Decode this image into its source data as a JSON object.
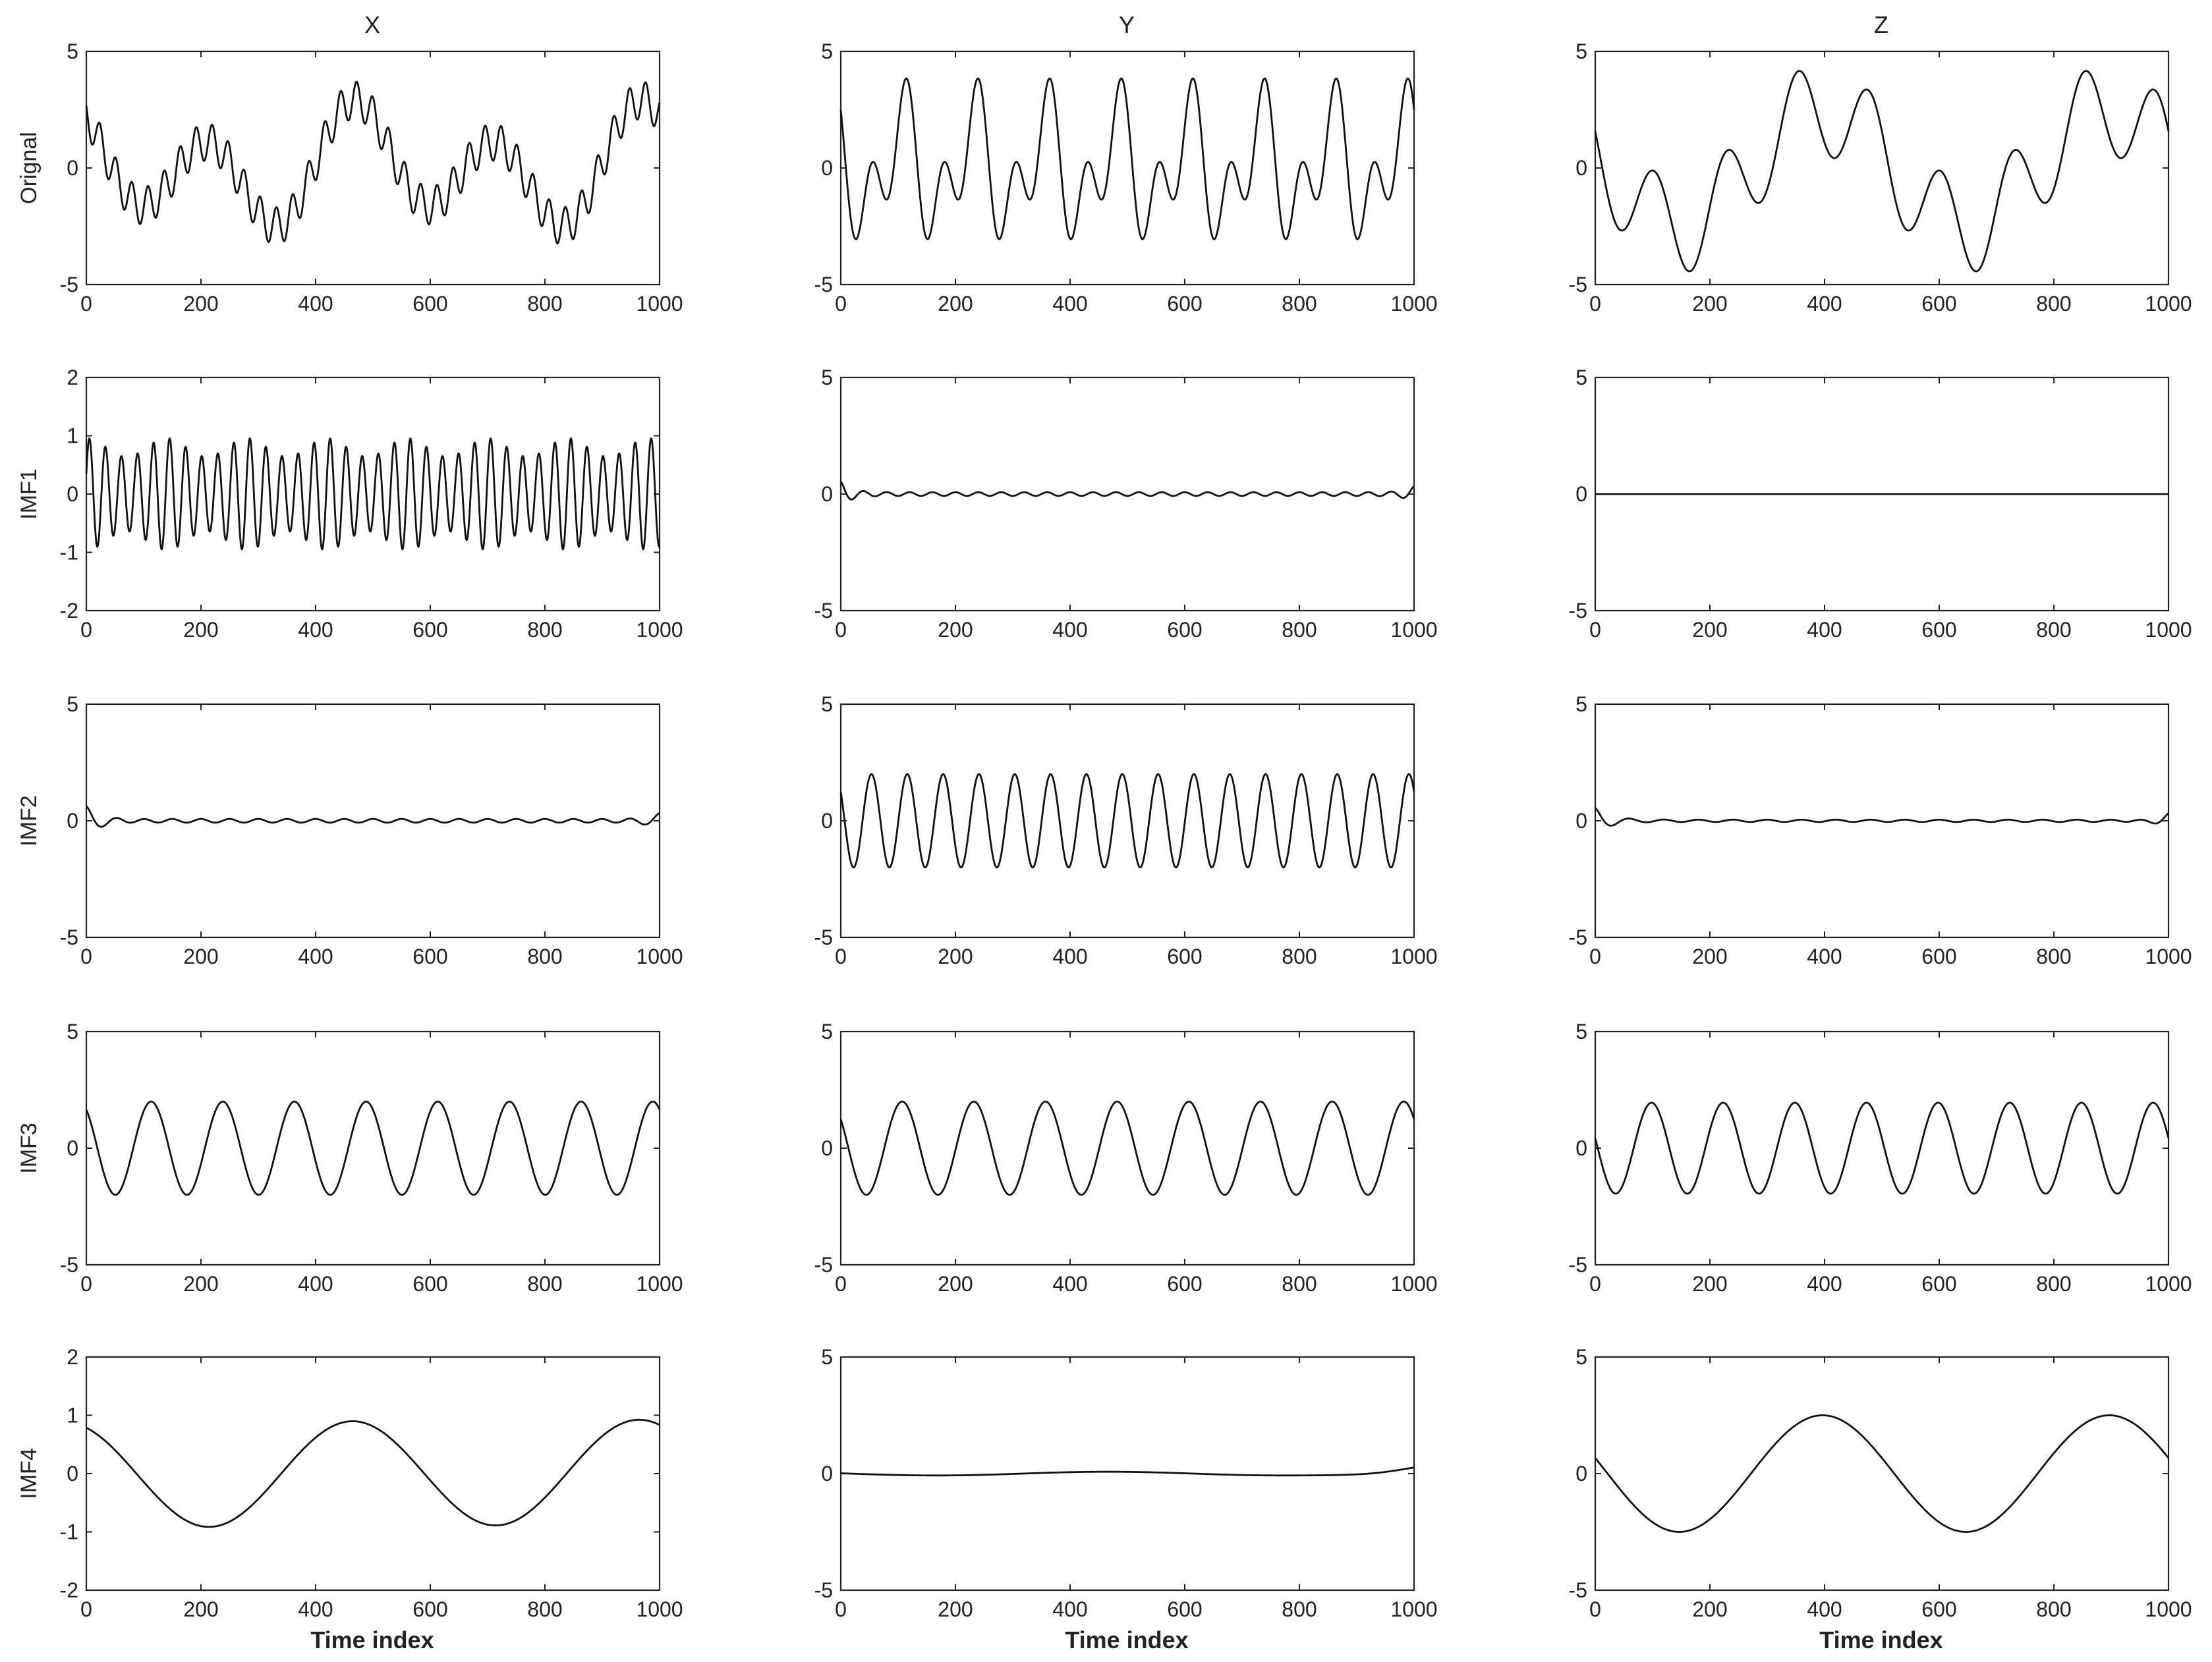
{
  "column_titles": [
    "X",
    "Y",
    "Z"
  ],
  "row_labels": [
    "Orignal",
    "IMF1",
    "IMF2",
    "IMF3",
    "IMF4"
  ],
  "xlabel": "Time index",
  "chart_data": [
    {
      "type": "line",
      "row": 0,
      "col": 0,
      "ylabel": "Orignal",
      "column_title": "X",
      "xlim": [
        0,
        1000
      ],
      "ylim": [
        -5,
        5
      ],
      "xticks": [
        "0",
        "200",
        "400",
        "600",
        "800",
        "1000"
      ],
      "yticks": [
        "-5",
        "0",
        "5"
      ],
      "series": [
        {
          "components": [
            {
              "amp": 2.0,
              "period": 250,
              "phase": 0.9
            },
            {
              "amp": 0.8,
              "period": 28,
              "phase": 1.0
            },
            {
              "amp": 1.0,
              "period": 500,
              "phase": 0.0
            }
          ]
        }
      ]
    },
    {
      "type": "line",
      "row": 0,
      "col": 1,
      "ylabel": "",
      "column_title": "Y",
      "xlim": [
        0,
        1000
      ],
      "ylim": [
        -5,
        5
      ],
      "xticks": [
        "0",
        "200",
        "400",
        "600",
        "800",
        "1000"
      ],
      "yticks": [
        "-5",
        "0",
        "5"
      ],
      "series": [
        {
          "components": [
            {
              "amp": 2.0,
              "period": 125,
              "phase": 0.9
            },
            {
              "amp": 2.0,
              "period": 62.5,
              "phase": 0.9
            }
          ]
        }
      ]
    },
    {
      "type": "line",
      "row": 0,
      "col": 2,
      "ylabel": "",
      "column_title": "Z",
      "xlim": [
        0,
        1000
      ],
      "ylim": [
        -5,
        5
      ],
      "xticks": [
        "0",
        "200",
        "400",
        "600",
        "800",
        "1000"
      ],
      "yticks": [
        "-5",
        "0",
        "5"
      ],
      "series": [
        {
          "components": [
            {
              "amp": 2.0,
              "period": 125,
              "phase": 1.1
            },
            {
              "amp": 2.5,
              "period": 500,
              "phase": 1.3
            }
          ]
        }
      ]
    },
    {
      "type": "line",
      "row": 1,
      "col": 0,
      "ylabel": "IMF1",
      "column_title": "X",
      "xlim": [
        0,
        1000
      ],
      "ylim": [
        -2,
        2
      ],
      "xticks": [
        "0",
        "200",
        "400",
        "600",
        "800",
        "1000"
      ],
      "yticks": [
        "-2",
        "-1",
        "0",
        "1",
        "2"
      ],
      "series": [
        {
          "components": [
            {
              "amp": 0.8,
              "period": 28,
              "phase": -1.2
            }
          ],
          "modulation": {
            "depth": 0.2,
            "period": 140
          }
        }
      ]
    },
    {
      "type": "line",
      "row": 1,
      "col": 1,
      "ylabel": "",
      "column_title": "Y",
      "xlim": [
        0,
        1000
      ],
      "ylim": [
        -5,
        5
      ],
      "xticks": [
        "0",
        "200",
        "400",
        "600",
        "800",
        "1000"
      ],
      "yticks": [
        "-5",
        "0",
        "5"
      ],
      "series": [
        {
          "components": [
            {
              "amp": 0.08,
              "period": 40,
              "phase": 0.0
            }
          ],
          "edge_wiggle": {
            "start_amp": 0.45,
            "end_amp": 0.25,
            "period": 40,
            "decay": 18
          }
        }
      ]
    },
    {
      "type": "line",
      "row": 1,
      "col": 2,
      "ylabel": "",
      "column_title": "Z",
      "xlim": [
        0,
        1000
      ],
      "ylim": [
        -5,
        5
      ],
      "xticks": [
        "0",
        "200",
        "400",
        "600",
        "800",
        "1000"
      ],
      "yticks": [
        "-5",
        "0",
        "5"
      ],
      "series": [
        {
          "components": [
            {
              "amp": 0.0,
              "period": 100,
              "phase": 0.0
            }
          ]
        }
      ]
    },
    {
      "type": "line",
      "row": 2,
      "col": 0,
      "ylabel": "IMF2",
      "column_title": "X",
      "xlim": [
        0,
        1000
      ],
      "ylim": [
        -5,
        5
      ],
      "xticks": [
        "0",
        "200",
        "400",
        "600",
        "800",
        "1000"
      ],
      "yticks": [
        "-5",
        "0",
        "5"
      ],
      "series": [
        {
          "components": [
            {
              "amp": 0.08,
              "period": 50,
              "phase": 0.0
            }
          ],
          "edge_wiggle": {
            "start_amp": 0.55,
            "end_amp": 0.25,
            "period": 60,
            "decay": 25
          }
        }
      ]
    },
    {
      "type": "line",
      "row": 2,
      "col": 1,
      "ylabel": "",
      "column_title": "Y",
      "xlim": [
        0,
        1000
      ],
      "ylim": [
        -5,
        5
      ],
      "xticks": [
        "0",
        "200",
        "400",
        "600",
        "800",
        "1000"
      ],
      "yticks": [
        "-5",
        "0",
        "5"
      ],
      "series": [
        {
          "components": [
            {
              "amp": 2.0,
              "period": 62.5,
              "phase": 0.9
            }
          ]
        }
      ]
    },
    {
      "type": "line",
      "row": 2,
      "col": 2,
      "ylabel": "",
      "column_title": "Z",
      "xlim": [
        0,
        1000
      ],
      "ylim": [
        -5,
        5
      ],
      "xticks": [
        "0",
        "200",
        "400",
        "600",
        "800",
        "1000"
      ],
      "yticks": [
        "-5",
        "0",
        "5"
      ],
      "series": [
        {
          "components": [
            {
              "amp": 0.05,
              "period": 60,
              "phase": 0.0
            }
          ],
          "edge_wiggle": {
            "start_amp": 0.5,
            "end_amp": 0.35,
            "period": 60,
            "decay": 25
          }
        }
      ]
    },
    {
      "type": "line",
      "row": 3,
      "col": 0,
      "ylabel": "IMF3",
      "column_title": "X",
      "xlim": [
        0,
        1000
      ],
      "ylim": [
        -5,
        5
      ],
      "xticks": [
        "0",
        "200",
        "400",
        "600",
        "800",
        "1000"
      ],
      "yticks": [
        "-5",
        "0",
        "5"
      ],
      "series": [
        {
          "components": [
            {
              "amp": 2.0,
              "period": 125,
              "phase": 0.6
            }
          ]
        }
      ]
    },
    {
      "type": "line",
      "row": 3,
      "col": 1,
      "ylabel": "",
      "column_title": "Y",
      "xlim": [
        0,
        1000
      ],
      "ylim": [
        -5,
        5
      ],
      "xticks": [
        "0",
        "200",
        "400",
        "600",
        "800",
        "1000"
      ],
      "yticks": [
        "-5",
        "0",
        "5"
      ],
      "series": [
        {
          "components": [
            {
              "amp": 2.0,
              "period": 125,
              "phase": 0.9
            }
          ]
        }
      ]
    },
    {
      "type": "line",
      "row": 3,
      "col": 2,
      "ylabel": "",
      "column_title": "Z",
      "xlim": [
        0,
        1000
      ],
      "ylim": [
        -5,
        5
      ],
      "xticks": [
        "0",
        "200",
        "400",
        "600",
        "800",
        "1000"
      ],
      "yticks": [
        "-5",
        "0",
        "5"
      ],
      "series": [
        {
          "components": [
            {
              "amp": 1.95,
              "period": 125,
              "phase": 1.35
            }
          ]
        }
      ]
    },
    {
      "type": "line",
      "row": 4,
      "col": 0,
      "ylabel": "IMF4",
      "column_title": "X",
      "xlim": [
        0,
        1000
      ],
      "ylim": [
        -2,
        2
      ],
      "xticks": [
        "0",
        "200",
        "400",
        "600",
        "800",
        "1000"
      ],
      "yticks": [
        "-2",
        "-1",
        "0",
        "1",
        "2"
      ],
      "series": [
        {
          "components": [
            {
              "amp": 0.9,
              "period": 500,
              "phase": 0.45
            }
          ],
          "trend": 0.05
        }
      ]
    },
    {
      "type": "line",
      "row": 4,
      "col": 1,
      "ylabel": "",
      "column_title": "Y",
      "xlim": [
        0,
        1000
      ],
      "ylim": [
        -5,
        5
      ],
      "xticks": [
        "0",
        "200",
        "400",
        "600",
        "800",
        "1000"
      ],
      "yticks": [
        "-5",
        "0",
        "5"
      ],
      "series": [
        {
          "components": [
            {
              "amp": 0.08,
              "period": 600,
              "phase": 1.4
            }
          ],
          "edge_wiggle": {
            "start_amp": 0.0,
            "end_amp": 0.2,
            "period": 300,
            "decay": 60
          }
        }
      ]
    },
    {
      "type": "line",
      "row": 4,
      "col": 2,
      "ylabel": "",
      "column_title": "Z",
      "xlim": [
        0,
        1000
      ],
      "ylim": [
        -5,
        5
      ],
      "xticks": [
        "0",
        "200",
        "400",
        "600",
        "800",
        "1000"
      ],
      "yticks": [
        "-5",
        "0",
        "5"
      ],
      "series": [
        {
          "components": [
            {
              "amp": 2.5,
              "period": 500,
              "phase": 1.3
            }
          ]
        }
      ]
    }
  ]
}
